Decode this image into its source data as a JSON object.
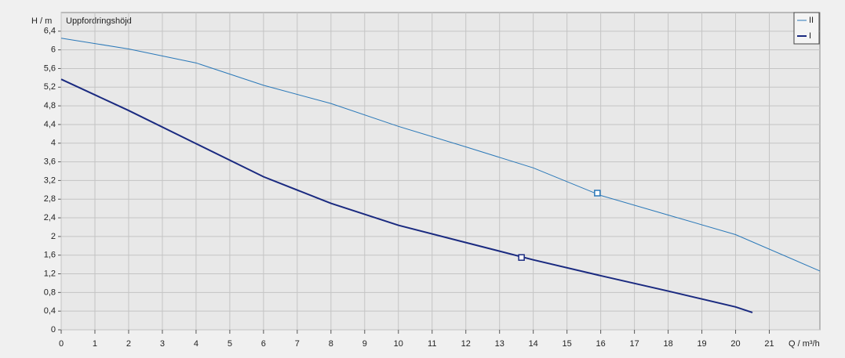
{
  "chart_data": {
    "type": "line",
    "title": "Uppfordringshöjd",
    "ylabel": "H / m",
    "xlabel": "Q / m³/h",
    "xlim": [
      0,
      22.5
    ],
    "ylim": [
      0,
      6.8
    ],
    "xticks": [
      0,
      1,
      2,
      3,
      4,
      5,
      6,
      7,
      8,
      9,
      10,
      11,
      12,
      13,
      14,
      15,
      16,
      17,
      18,
      19,
      20,
      21
    ],
    "yticks": [
      0,
      {
        "value": 0.4,
        "label": "0,4"
      },
      {
        "value": 0.8,
        "label": "0,8"
      },
      {
        "value": 1.2,
        "label": "1,2"
      },
      {
        "value": 1.6,
        "label": "1,6"
      },
      2,
      {
        "value": 2.4,
        "label": "2,4"
      },
      {
        "value": 2.8,
        "label": "2,8"
      },
      {
        "value": 3.2,
        "label": "3,2"
      },
      {
        "value": 3.6,
        "label": "3,6"
      },
      4,
      {
        "value": 4.4,
        "label": "4,4"
      },
      {
        "value": 4.8,
        "label": "4,8"
      },
      {
        "value": 5.2,
        "label": "5,2"
      },
      {
        "value": 5.6,
        "label": "5,6"
      },
      6,
      {
        "value": 6.4,
        "label": "6,4"
      }
    ],
    "grid": true,
    "legend": "top-right",
    "series": [
      {
        "name": "II",
        "color": "#2a78b8",
        "width": 1,
        "x": [
          0,
          2,
          4,
          6,
          8,
          10,
          12,
          14,
          16,
          18,
          20,
          22.5
        ],
        "values": [
          6.25,
          6.02,
          5.72,
          5.24,
          4.85,
          4.36,
          3.92,
          3.47,
          2.88,
          2.46,
          2.04,
          1.26
        ],
        "marker": {
          "x": 15.9,
          "y": 2.93
        }
      },
      {
        "name": "I",
        "color": "#1a2a80",
        "width": 2,
        "x": [
          0,
          2,
          4,
          6,
          8,
          10,
          12,
          14,
          16,
          18,
          20,
          20.5
        ],
        "values": [
          5.37,
          4.7,
          3.99,
          3.28,
          2.71,
          2.24,
          1.87,
          1.5,
          1.16,
          0.83,
          0.49,
          0.37
        ],
        "marker": {
          "x": 13.65,
          "y": 1.55
        }
      }
    ]
  }
}
